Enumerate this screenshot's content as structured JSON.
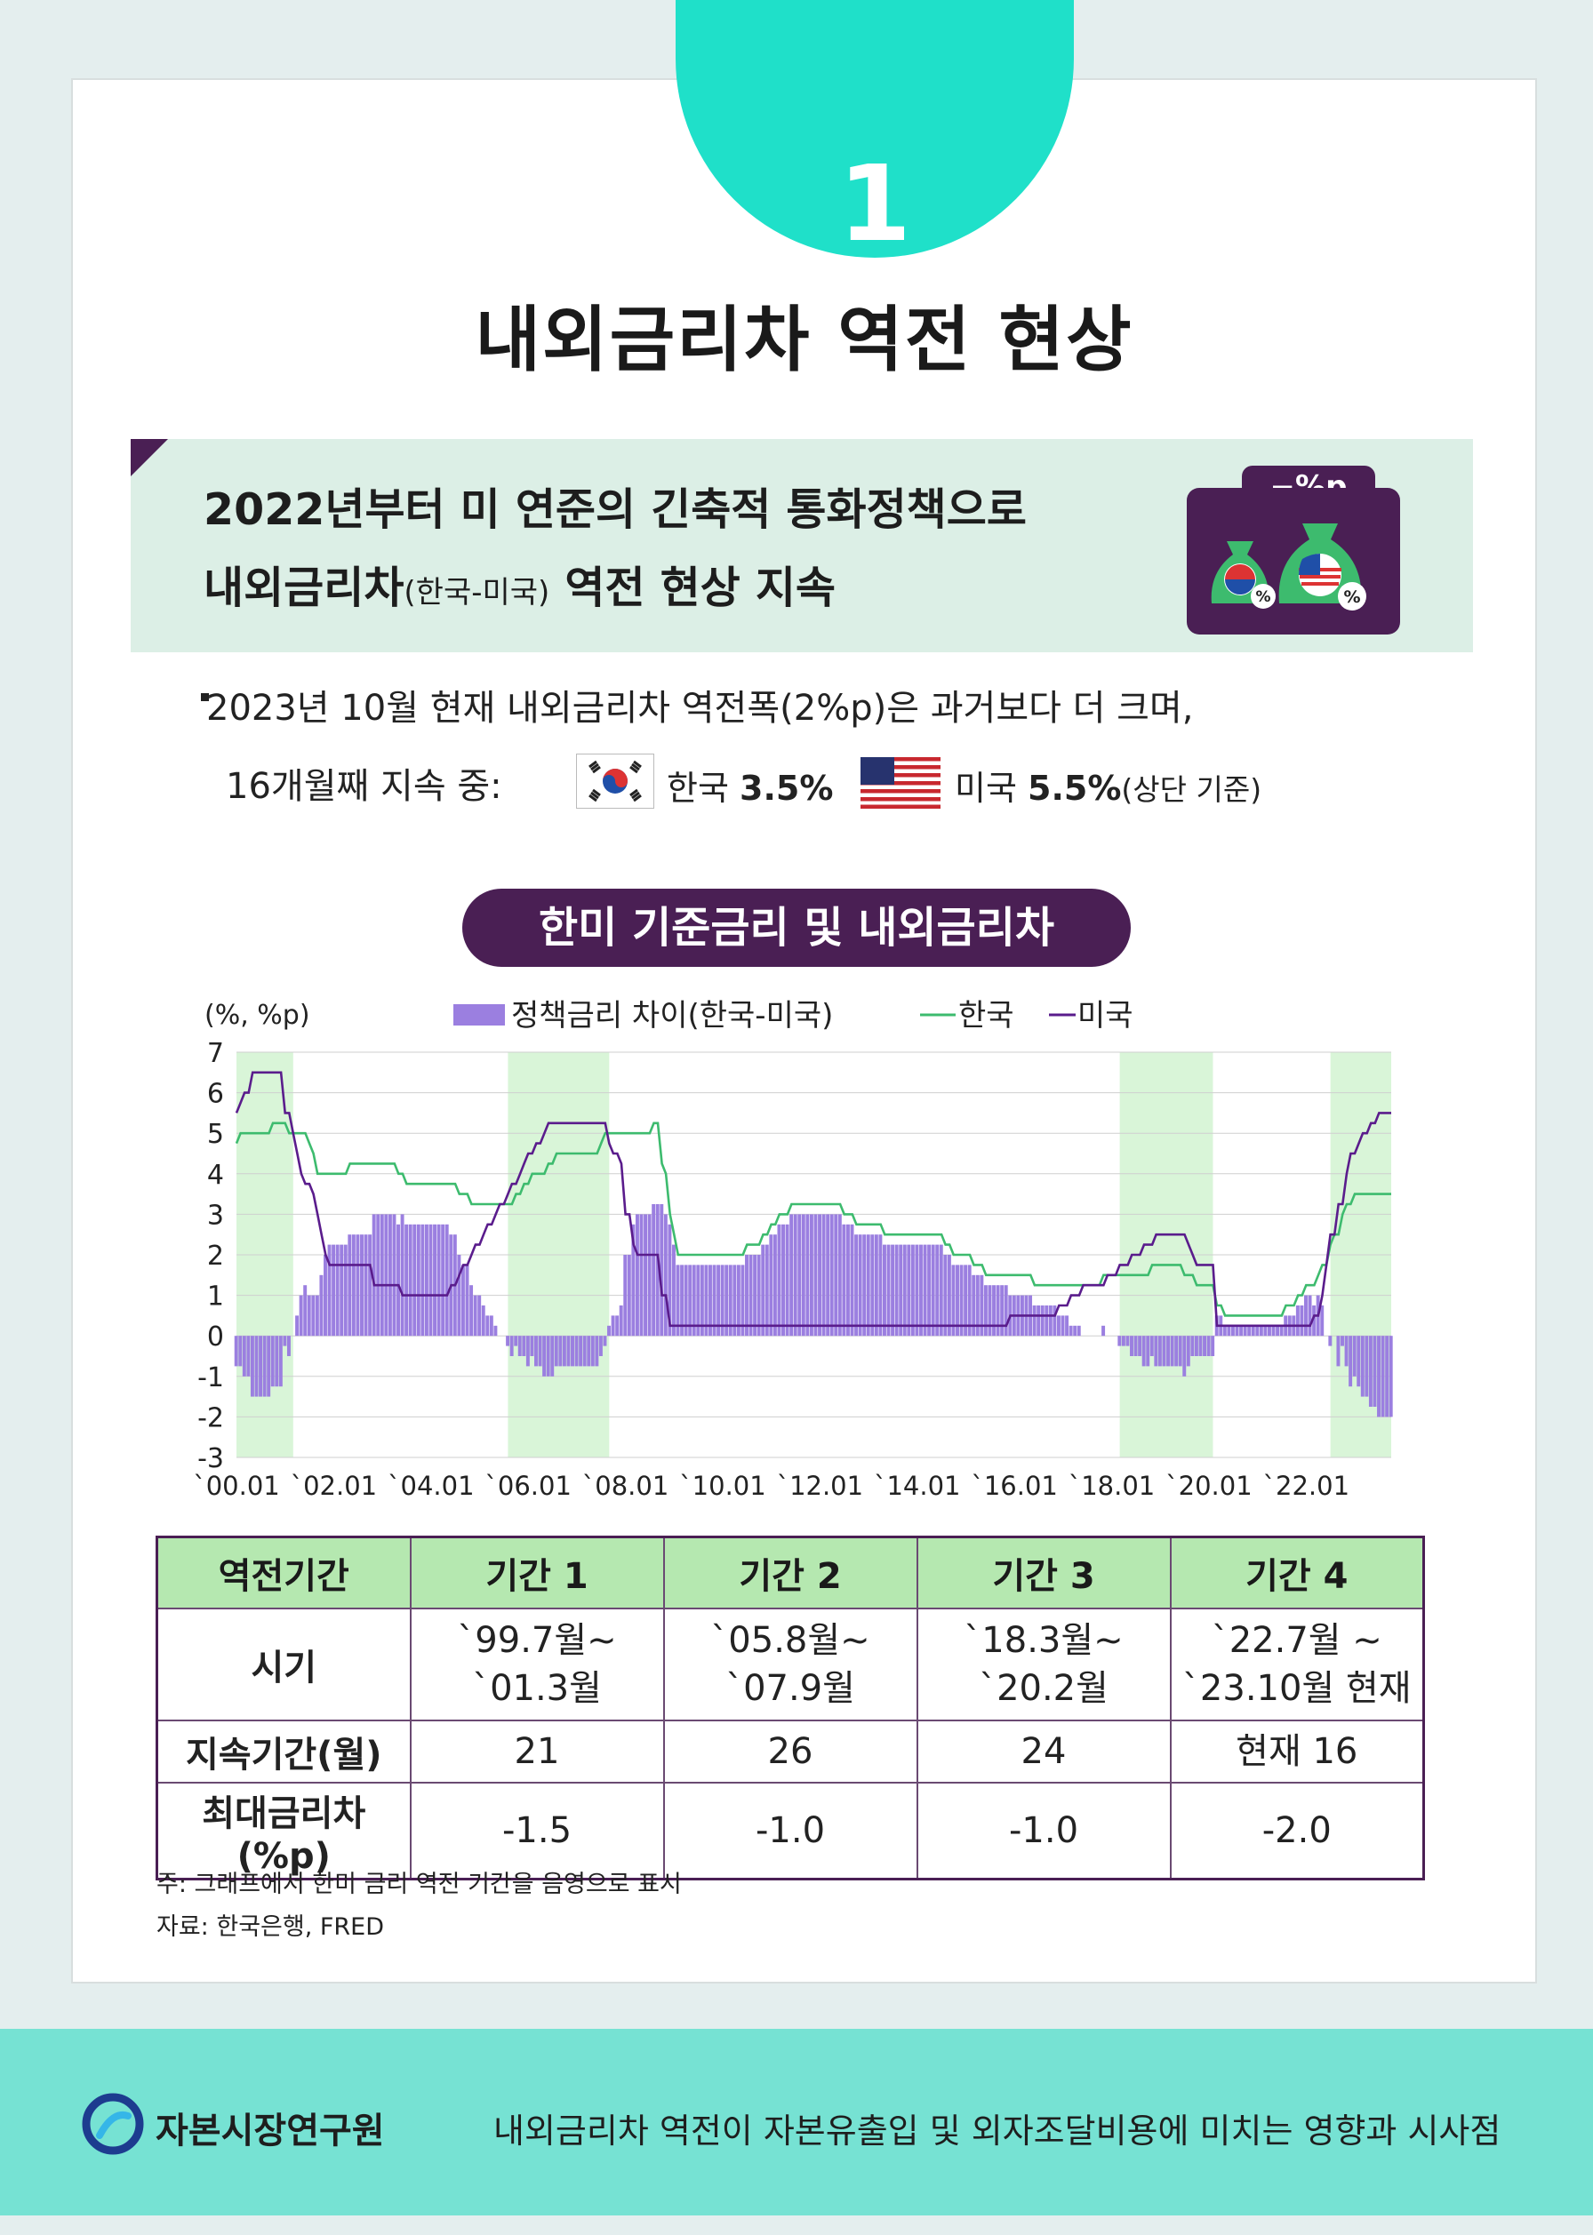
{
  "badge_number": "1",
  "title": "내외금리차 역전 현상",
  "banner": {
    "line1": "2022년부터 미 연준의 긴축적 통화정책으로",
    "line2_main": "내외금리차",
    "line2_small": "(한국-미국)",
    "line2_end": " 역전 현상 지속",
    "icon_label": "−%p",
    "bag_percent": "%"
  },
  "bullet": {
    "line1": "2023년 10월 현재 내외금리차 역전폭(2%p)은 과거보다 더 크며,",
    "line2": "16개월째 지속 중:",
    "korea_label": "한국",
    "korea_rate": "3.5%",
    "us_label": "미국",
    "us_rate": "5.5%",
    "us_note": "(상단 기준)"
  },
  "chart_title": "한미 기준금리 및 내외금리차",
  "chart_data": {
    "type": "bar+line",
    "unit_label": "(%, %p)",
    "ylim": [
      -3,
      7
    ],
    "yticks": [
      "7",
      "6",
      "5",
      "4",
      "3",
      "2",
      "1",
      "0",
      "-1",
      "-2",
      "-3"
    ],
    "xlim": [
      "2000-01",
      "2023-10"
    ],
    "xticks": [
      "`00.01",
      "`02.01",
      "`04.01",
      "`06.01",
      "`08.01",
      "`10.01",
      "`12.01",
      "`14.01",
      "`16.01",
      "`18.01",
      "`20.01",
      "`22.01"
    ],
    "legend": [
      "정책금리 차이(한국-미국)",
      "한국",
      "미국"
    ],
    "grid": true,
    "colors": {
      "diff": "#9b7fe0",
      "korea": "#3dbb6e",
      "us": "#5a1c8c",
      "shade": "#d9f5d8"
    },
    "shaded_periods": [
      [
        "2000-01",
        "2001-03"
      ],
      [
        "2005-08",
        "2007-09"
      ],
      [
        "2018-03",
        "2020-02"
      ],
      [
        "2022-07",
        "2023-10"
      ]
    ],
    "series": [
      {
        "name": "한국",
        "points": [
          [
            "2000-01",
            4.75
          ],
          [
            "2000-02",
            5.0
          ],
          [
            "2000-10",
            5.25
          ],
          [
            "2001-02",
            5.0
          ],
          [
            "2001-07",
            4.75
          ],
          [
            "2001-08",
            4.5
          ],
          [
            "2001-09",
            4.0
          ],
          [
            "2002-05",
            4.25
          ],
          [
            "2003-05",
            4.0
          ],
          [
            "2003-07",
            3.75
          ],
          [
            "2004-08",
            3.5
          ],
          [
            "2004-11",
            3.25
          ],
          [
            "2005-10",
            3.5
          ],
          [
            "2005-12",
            3.75
          ],
          [
            "2006-02",
            4.0
          ],
          [
            "2006-06",
            4.25
          ],
          [
            "2006-08",
            4.5
          ],
          [
            "2007-07",
            4.75
          ],
          [
            "2007-08",
            5.0
          ],
          [
            "2008-08",
            5.25
          ],
          [
            "2008-10",
            4.25
          ],
          [
            "2008-11",
            4.0
          ],
          [
            "2008-12",
            3.0
          ],
          [
            "2009-01",
            2.5
          ],
          [
            "2009-02",
            2.0
          ],
          [
            "2010-07",
            2.25
          ],
          [
            "2010-11",
            2.5
          ],
          [
            "2011-01",
            2.75
          ],
          [
            "2011-03",
            3.0
          ],
          [
            "2011-06",
            3.25
          ],
          [
            "2012-07",
            3.0
          ],
          [
            "2012-10",
            2.75
          ],
          [
            "2013-05",
            2.5
          ],
          [
            "2014-08",
            2.25
          ],
          [
            "2014-10",
            2.0
          ],
          [
            "2015-03",
            1.75
          ],
          [
            "2015-06",
            1.5
          ],
          [
            "2016-06",
            1.25
          ],
          [
            "2017-11",
            1.5
          ],
          [
            "2018-11",
            1.75
          ],
          [
            "2019-07",
            1.5
          ],
          [
            "2019-10",
            1.25
          ],
          [
            "2020-03",
            0.75
          ],
          [
            "2020-05",
            0.5
          ],
          [
            "2021-08",
            0.75
          ],
          [
            "2021-11",
            1.0
          ],
          [
            "2022-01",
            1.25
          ],
          [
            "2022-04",
            1.5
          ],
          [
            "2022-05",
            1.75
          ],
          [
            "2022-07",
            2.25
          ],
          [
            "2022-08",
            2.5
          ],
          [
            "2022-10",
            3.0
          ],
          [
            "2022-11",
            3.25
          ],
          [
            "2023-01",
            3.5
          ],
          [
            "2023-10",
            3.5
          ]
        ]
      },
      {
        "name": "미국",
        "points": [
          [
            "2000-01",
            5.5
          ],
          [
            "2000-02",
            5.75
          ],
          [
            "2000-03",
            6.0
          ],
          [
            "2000-05",
            6.5
          ],
          [
            "2001-01",
            5.5
          ],
          [
            "2001-02",
            5.5
          ],
          [
            "2001-03",
            5.0
          ],
          [
            "2001-04",
            4.5
          ],
          [
            "2001-05",
            4.0
          ],
          [
            "2001-06",
            3.75
          ],
          [
            "2001-08",
            3.5
          ],
          [
            "2001-09",
            3.0
          ],
          [
            "2001-10",
            2.5
          ],
          [
            "2001-11",
            2.0
          ],
          [
            "2001-12",
            1.75
          ],
          [
            "2002-11",
            1.25
          ],
          [
            "2003-06",
            1.0
          ],
          [
            "2004-06",
            1.25
          ],
          [
            "2004-08",
            1.5
          ],
          [
            "2004-09",
            1.75
          ],
          [
            "2004-11",
            2.0
          ],
          [
            "2004-12",
            2.25
          ],
          [
            "2005-02",
            2.5
          ],
          [
            "2005-03",
            2.75
          ],
          [
            "2005-05",
            3.0
          ],
          [
            "2005-06",
            3.25
          ],
          [
            "2005-08",
            3.5
          ],
          [
            "2005-09",
            3.75
          ],
          [
            "2005-11",
            4.0
          ],
          [
            "2005-12",
            4.25
          ],
          [
            "2006-01",
            4.5
          ],
          [
            "2006-03",
            4.75
          ],
          [
            "2006-05",
            5.0
          ],
          [
            "2006-06",
            5.25
          ],
          [
            "2007-09",
            4.75
          ],
          [
            "2007-10",
            4.5
          ],
          [
            "2007-12",
            4.25
          ],
          [
            "2008-01",
            3.0
          ],
          [
            "2008-03",
            2.25
          ],
          [
            "2008-04",
            2.0
          ],
          [
            "2008-10",
            1.0
          ],
          [
            "2008-12",
            0.25
          ],
          [
            "2015-12",
            0.5
          ],
          [
            "2016-12",
            0.75
          ],
          [
            "2017-03",
            1.0
          ],
          [
            "2017-06",
            1.25
          ],
          [
            "2017-12",
            1.5
          ],
          [
            "2018-03",
            1.75
          ],
          [
            "2018-06",
            2.0
          ],
          [
            "2018-09",
            2.25
          ],
          [
            "2018-12",
            2.5
          ],
          [
            "2019-08",
            2.25
          ],
          [
            "2019-09",
            2.0
          ],
          [
            "2019-10",
            1.75
          ],
          [
            "2020-03",
            0.25
          ],
          [
            "2022-03",
            0.5
          ],
          [
            "2022-05",
            1.0
          ],
          [
            "2022-06",
            1.75
          ],
          [
            "2022-07",
            2.5
          ],
          [
            "2022-09",
            3.25
          ],
          [
            "2022-11",
            4.0
          ],
          [
            "2022-12",
            4.5
          ],
          [
            "2023-02",
            4.75
          ],
          [
            "2023-03",
            5.0
          ],
          [
            "2023-05",
            5.25
          ],
          [
            "2023-07",
            5.5
          ],
          [
            "2023-10",
            5.5
          ]
        ]
      }
    ],
    "difference_series": {
      "name": "정책금리 차이(한국-미국)",
      "derived_from": "한국 - 미국, monthly"
    }
  },
  "table": {
    "headers": [
      "역전기간",
      "기간 1",
      "기간 2",
      "기간 3",
      "기간 4"
    ],
    "rows": [
      {
        "label": "시기",
        "cells": [
          [
            "`99.7월~",
            "`01.3월"
          ],
          [
            "`05.8월~",
            "`07.9월"
          ],
          [
            "`18.3월~",
            "`20.2월"
          ],
          [
            "`22.7월 ~",
            "`23.10월 현재"
          ]
        ]
      },
      {
        "label": "지속기간(월)",
        "cells": [
          [
            "21"
          ],
          [
            "26"
          ],
          [
            "24"
          ],
          [
            "현재 16"
          ]
        ]
      },
      {
        "label": "최대금리차(%p)",
        "cells": [
          [
            "-1.5"
          ],
          [
            "-1.0"
          ],
          [
            "-1.0"
          ],
          [
            "-2.0"
          ]
        ]
      }
    ]
  },
  "notes": {
    "note": "주: 그래프에서 한미 금리 역전 기간을 음영으로 표시",
    "source": "자료: 한국은행, FRED"
  },
  "footer": {
    "org": "자본시장연구원",
    "desc": "내외금리차 역전이 자본유출입 및 외자조달비용에 미치는 영향과 시사점"
  }
}
